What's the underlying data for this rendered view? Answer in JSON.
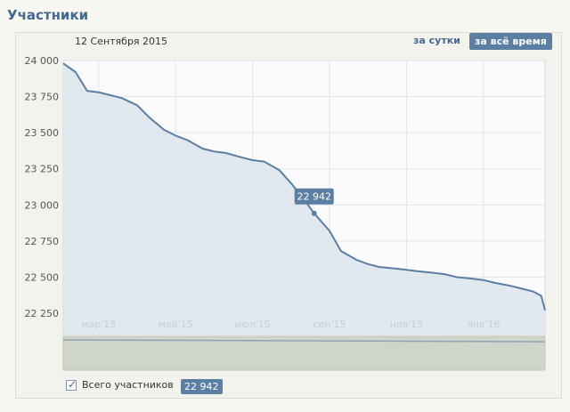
{
  "header": {
    "title": "Участники"
  },
  "chart_header": {
    "date": "12 Сентября 2015",
    "period_day": "за сутки",
    "period_all": "за всё время"
  },
  "legend": {
    "label": "Всего участников",
    "value": "22 942"
  },
  "tooltip": {
    "label": "22 942"
  },
  "colors": {
    "line": "#5b7ea3",
    "fill": "#dde4ed",
    "accent": "#5b7ea3"
  },
  "chart_data": {
    "type": "area",
    "title": "",
    "xlabel": "",
    "ylabel": "",
    "ylim": [
      22250,
      24000
    ],
    "yticks": [
      24000,
      23750,
      23500,
      23250,
      23000,
      22750,
      22500,
      22250
    ],
    "ytick_labels": [
      "24 000",
      "23 750",
      "23 500",
      "23 250",
      "23 000",
      "22 750",
      "22 500",
      "22 250"
    ],
    "xtick_labels": [
      "мар'15",
      "май'15",
      "июл'15",
      "сен'15",
      "ноя'15",
      "янв'16"
    ],
    "xtick_positions": [
      2,
      4,
      6,
      8,
      10,
      12
    ],
    "xlim": [
      1.08,
      13.6
    ],
    "grid": true,
    "series": [
      {
        "name": "Всего участников",
        "x": [
          1.08,
          1.4,
          1.7,
          2.0,
          2.3,
          2.6,
          3.0,
          3.3,
          3.7,
          4.0,
          4.3,
          4.7,
          5.0,
          5.3,
          5.7,
          6.0,
          6.3,
          6.7,
          7.0,
          7.3,
          7.6,
          8.0,
          8.3,
          8.7,
          9.0,
          9.3,
          9.7,
          10.0,
          10.3,
          10.7,
          11.0,
          11.3,
          11.7,
          12.0,
          12.3,
          12.7,
          13.0,
          13.3,
          13.5,
          13.6
        ],
        "y": [
          23980,
          23920,
          23790,
          23780,
          23760,
          23740,
          23690,
          23610,
          23520,
          23480,
          23450,
          23390,
          23370,
          23360,
          23330,
          23310,
          23300,
          23240,
          23150,
          23050,
          22942,
          22820,
          22680,
          22620,
          22590,
          22570,
          22560,
          22550,
          22540,
          22530,
          22520,
          22500,
          22490,
          22480,
          22460,
          22440,
          22420,
          22400,
          22370,
          22270
        ]
      }
    ],
    "highlight": {
      "x": 7.6,
      "y": 22942
    }
  }
}
